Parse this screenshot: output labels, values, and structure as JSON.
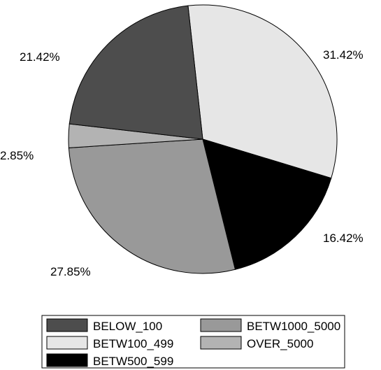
{
  "chart_data": {
    "type": "pie",
    "title": "",
    "slices": [
      {
        "name": "BELOW_100",
        "value": 21.42,
        "label": "21.42%",
        "color": "#4d4d4d"
      },
      {
        "name": "BETW100_499",
        "value": 31.42,
        "label": "31.42%",
        "color": "#e6e6e6"
      },
      {
        "name": "BETW500_599",
        "value": 16.42,
        "label": "16.42%",
        "color": "#000000"
      },
      {
        "name": "BETW1000_5000",
        "value": 27.85,
        "label": "27.85%",
        "color": "#999999"
      },
      {
        "name": "OVER_5000",
        "value": 2.85,
        "label": "2.85%",
        "color": "#b3b3b3"
      }
    ],
    "legend": {
      "placement": "bottom",
      "entries": [
        "BELOW_100",
        "BETW1000_5000",
        "BETW100_499",
        "OVER_5000",
        "BETW500_599"
      ]
    }
  }
}
